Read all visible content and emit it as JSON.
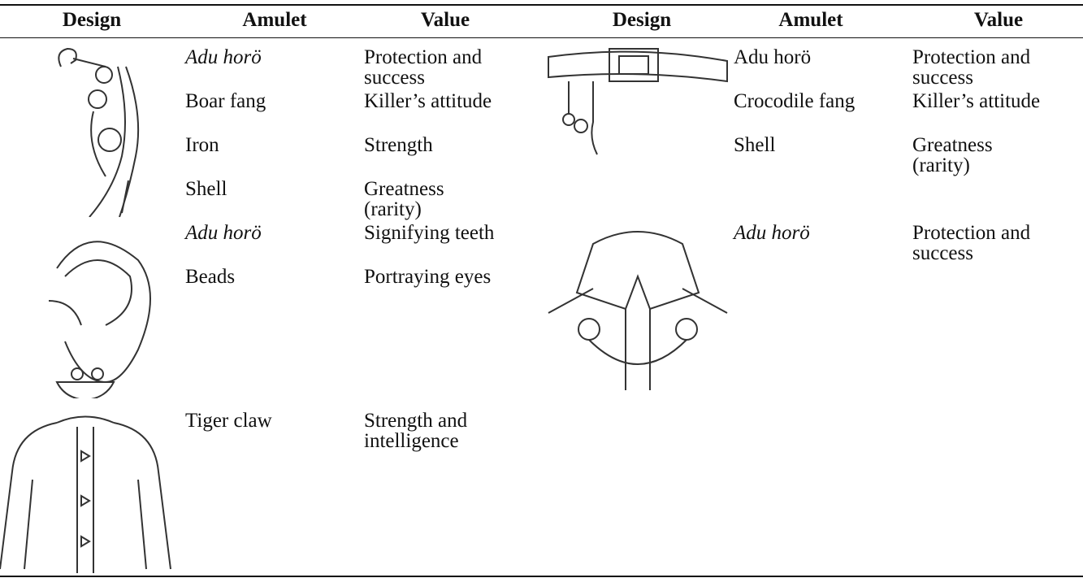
{
  "header": [
    "Design",
    "Amulet",
    "Value",
    "Design",
    "Amulet",
    "Value"
  ],
  "left": [
    {
      "rows": [
        {
          "amulet": "Adu horö",
          "value": "Protection and success",
          "italic": true
        },
        {
          "amulet": "Boar fang",
          "value": "Killer’s attitude"
        },
        {
          "amulet": "Iron",
          "value": "Strength"
        },
        {
          "amulet": "Shell",
          "value": "Greatness (rarity)"
        }
      ]
    },
    {
      "rows": [
        {
          "amulet": "Adu horö",
          "value": "Signifying teeth",
          "italic": true
        },
        {
          "amulet": "Beads",
          "value": "Portraying eyes"
        }
      ]
    },
    {
      "rows": [
        {
          "amulet": "Tiger claw",
          "value": "Strength and intelligence"
        }
      ]
    }
  ],
  "right": [
    {
      "rows": [
        {
          "amulet": "Adu horö",
          "value": "Protection and success"
        },
        {
          "amulet": "Crocodile fang",
          "value": "Killer’s attitude"
        },
        {
          "amulet": "Shell",
          "value": "Greatness (rarity)"
        }
      ]
    },
    {
      "rows": [
        {
          "amulet": "Adu horö",
          "value": "Protection and success",
          "italic": true
        }
      ]
    }
  ]
}
